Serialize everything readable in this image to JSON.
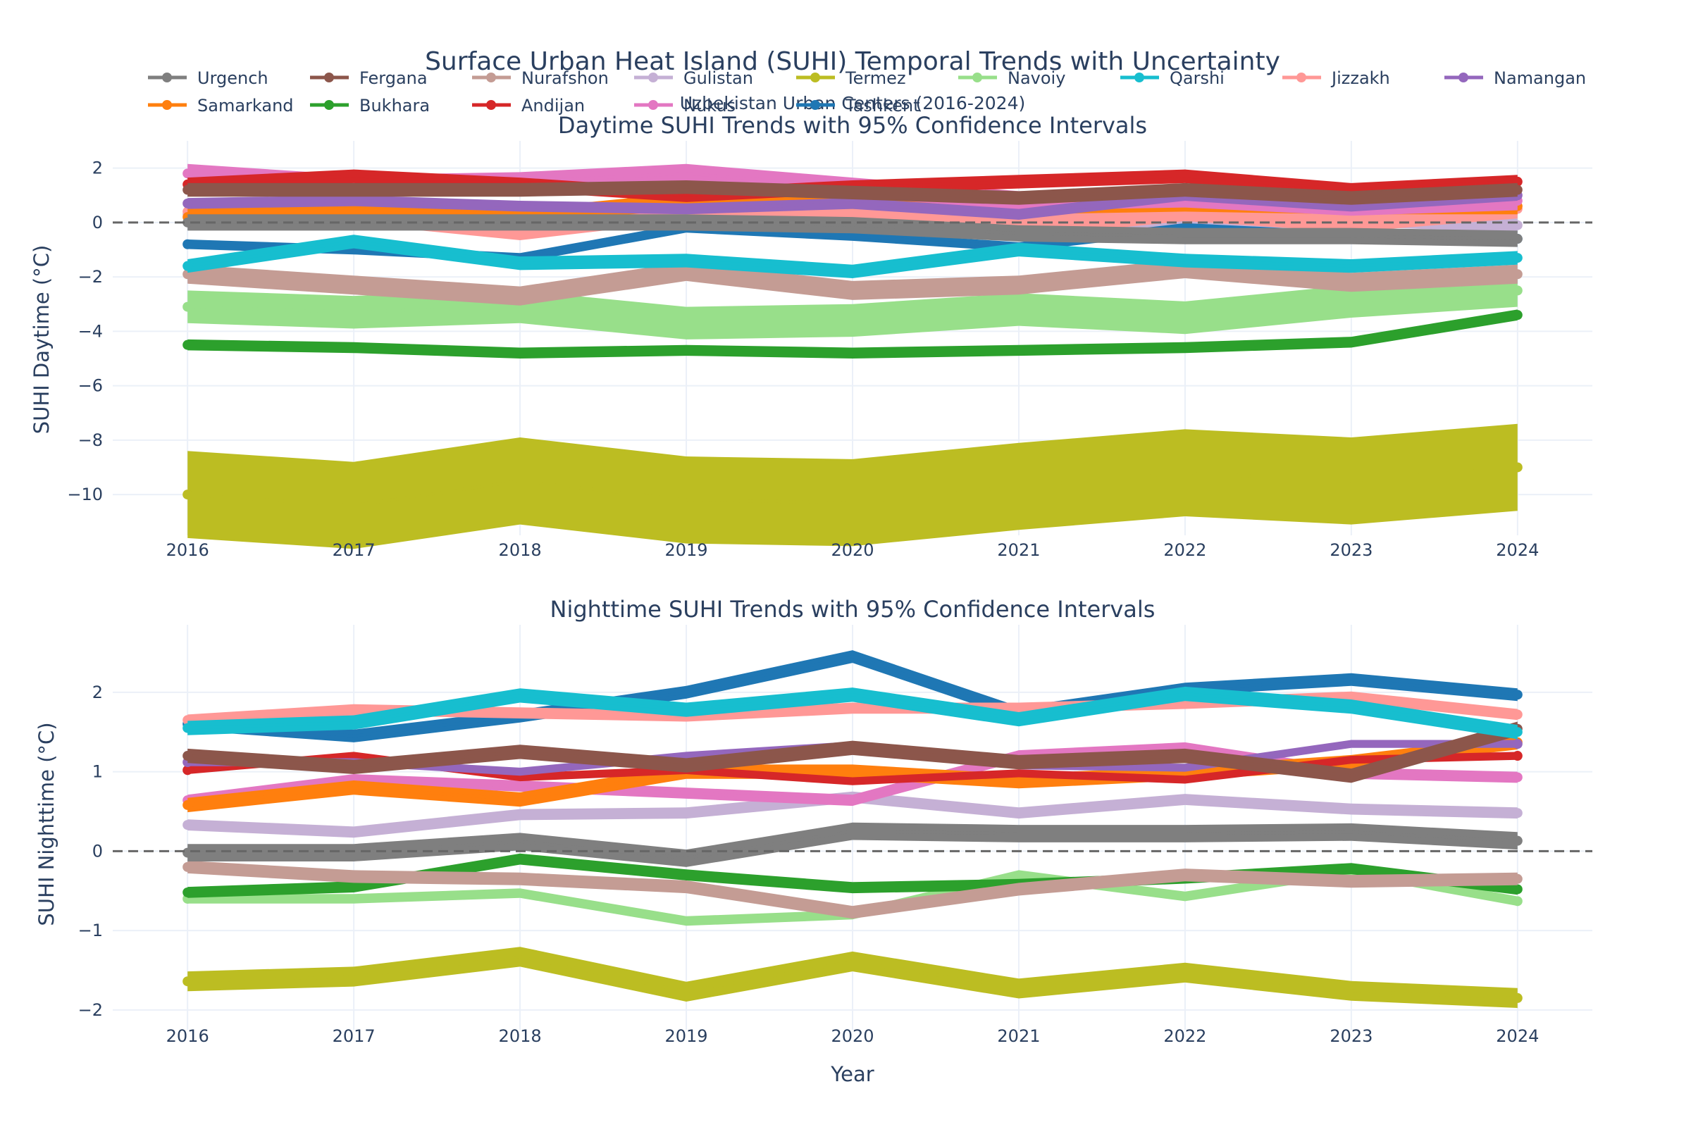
{
  "figure": {
    "title": "Surface Urban Heat Island (SUHI) Temporal Trends with Uncertainty",
    "subtitle": "Uzbekistan Urban Centers (2016-2024)"
  },
  "legend_entries": [
    {
      "name": "Urgench",
      "color": "#7f7f7f"
    },
    {
      "name": "Fergana",
      "color": "#8c564b"
    },
    {
      "name": "Nurafshon",
      "color": "#c49c94"
    },
    {
      "name": "Gulistan",
      "color": "#c5b0d5"
    },
    {
      "name": "Termez",
      "color": "#bcbd22"
    },
    {
      "name": "Navoiy",
      "color": "#98df8a"
    },
    {
      "name": "Qarshi",
      "color": "#17becf"
    },
    {
      "name": "Jizzakh",
      "color": "#ff9896"
    },
    {
      "name": "Namangan",
      "color": "#9467bd"
    },
    {
      "name": "Samarkand",
      "color": "#ff7f0e"
    },
    {
      "name": "Bukhara",
      "color": "#2ca02c"
    },
    {
      "name": "Andijan",
      "color": "#d62728"
    },
    {
      "name": "Nukus",
      "color": "#e377c2"
    },
    {
      "name": "Tashkent",
      "color": "#1f77b4"
    }
  ],
  "chart_data": [
    {
      "type": "line",
      "title": "Daytime SUHI Trends with 95% Confidence Intervals",
      "xlabel": "",
      "ylabel": "SUHI Daytime (°C)",
      "x": [
        2016,
        2017,
        2018,
        2019,
        2020,
        2021,
        2022,
        2023,
        2024
      ],
      "ylim": [
        -11.5,
        3.0
      ],
      "yticks": [
        2,
        0,
        -2,
        -4,
        -6,
        -8,
        -10
      ],
      "tick_labels": [
        "2",
        "0",
        "−2",
        "−4",
        "−6",
        "−8",
        "−10"
      ],
      "reference_line": 0,
      "series": [
        {
          "name": "Termez",
          "color": "#bcbd22",
          "width": 3.2,
          "values": [
            -10.0,
            -10.4,
            -9.5,
            -10.2,
            -10.3,
            -9.7,
            -9.2,
            -9.5,
            -9.0
          ]
        },
        {
          "name": "Navoiy",
          "color": "#98df8a",
          "width": 1.2,
          "values": [
            -3.1,
            -3.3,
            -3.1,
            -3.7,
            -3.6,
            -3.2,
            -3.5,
            -2.9,
            -2.5
          ]
        },
        {
          "name": "Nurafshon",
          "color": "#c49c94",
          "width": 0.7,
          "values": [
            -1.9,
            -2.3,
            -2.7,
            -1.8,
            -2.5,
            -2.3,
            -1.7,
            -2.2,
            -1.9
          ]
        },
        {
          "name": "Gulistan",
          "color": "#c5b0d5",
          "width": 0.5,
          "values": [
            0.3,
            0.3,
            0.1,
            0.4,
            0.4,
            0.2,
            0.0,
            0.1,
            -0.1
          ]
        },
        {
          "name": "Jizzakh",
          "color": "#ff9896",
          "width": 0.7,
          "values": [
            0.4,
            0.3,
            -0.3,
            0.4,
            0.2,
            -0.2,
            0.4,
            0.0,
            0.5
          ]
        },
        {
          "name": "Samarkand",
          "color": "#ff7f0e",
          "width": 0.6,
          "values": [
            0.2,
            0.4,
            0.2,
            0.8,
            0.8,
            0.6,
            0.7,
            0.6,
            0.6
          ]
        },
        {
          "name": "Bukhara",
          "color": "#2ca02c",
          "width": 0.4,
          "values": [
            -4.5,
            -4.6,
            -4.8,
            -4.7,
            -4.8,
            -4.7,
            -4.6,
            -4.4,
            -3.4
          ]
        },
        {
          "name": "Tashkent",
          "color": "#1f77b4",
          "width": 0.35,
          "values": [
            -0.8,
            -1.0,
            -1.3,
            -0.2,
            -0.5,
            -0.9,
            -0.2,
            -0.5,
            -0.6
          ]
        },
        {
          "name": "Qarshi",
          "color": "#17becf",
          "width": 0.5,
          "values": [
            -1.6,
            -0.7,
            -1.5,
            -1.4,
            -1.8,
            -1.0,
            -1.4,
            -1.6,
            -1.3
          ]
        },
        {
          "name": "Nukus",
          "color": "#e377c2",
          "width": 0.7,
          "values": [
            1.8,
            1.4,
            1.5,
            1.8,
            1.3,
            0.8,
            0.9,
            0.6,
            0.8
          ]
        },
        {
          "name": "Namangan",
          "color": "#9467bd",
          "width": 0.4,
          "values": [
            0.7,
            0.8,
            0.6,
            0.5,
            0.7,
            0.3,
            1.0,
            0.6,
            1.0
          ]
        },
        {
          "name": "Andijan",
          "color": "#d62728",
          "width": 0.5,
          "values": [
            1.4,
            1.7,
            1.4,
            1.0,
            1.3,
            1.5,
            1.7,
            1.2,
            1.5
          ]
        },
        {
          "name": "Fergana",
          "color": "#8c564b",
          "width": 0.5,
          "values": [
            1.2,
            1.2,
            1.2,
            1.3,
            1.1,
            0.9,
            1.2,
            0.9,
            1.2
          ]
        },
        {
          "name": "Urgench",
          "color": "#7f7f7f",
          "width": 0.6,
          "values": [
            0.0,
            0.0,
            0.0,
            0.0,
            -0.1,
            -0.4,
            -0.5,
            -0.5,
            -0.6
          ]
        }
      ]
    },
    {
      "type": "line",
      "title": "Nighttime SUHI Trends with 95% Confidence Intervals",
      "xlabel": "Year",
      "ylabel": "SUHI Nighttime (°C)",
      "x": [
        2016,
        2017,
        2018,
        2019,
        2020,
        2021,
        2022,
        2023,
        2024
      ],
      "ylim": [
        -2.25,
        2.85
      ],
      "yticks": [
        2,
        1,
        0,
        -1,
        -2
      ],
      "tick_labels": [
        "2",
        "1",
        "0",
        "−1",
        "−2"
      ],
      "reference_line": 0,
      "series": [
        {
          "name": "Termez",
          "color": "#bcbd22",
          "width": 0.25,
          "values": [
            -1.64,
            -1.58,
            -1.33,
            -1.77,
            -1.39,
            -1.73,
            -1.53,
            -1.76,
            -1.85
          ]
        },
        {
          "name": "Navoiy",
          "color": "#98df8a",
          "width": 0.12,
          "values": [
            -0.6,
            -0.6,
            -0.53,
            -0.88,
            -0.8,
            -0.3,
            -0.57,
            -0.25,
            -0.63
          ]
        },
        {
          "name": "Bukhara",
          "color": "#2ca02c",
          "width": 0.14,
          "values": [
            -0.52,
            -0.45,
            -0.1,
            -0.3,
            -0.46,
            -0.42,
            -0.34,
            -0.22,
            -0.48
          ]
        },
        {
          "name": "Nurafshon",
          "color": "#c49c94",
          "width": 0.16,
          "values": [
            -0.2,
            -0.32,
            -0.35,
            -0.45,
            -0.77,
            -0.48,
            -0.3,
            -0.38,
            -0.35
          ]
        },
        {
          "name": "Urgench",
          "color": "#7f7f7f",
          "width": 0.22,
          "values": [
            -0.02,
            -0.02,
            0.12,
            -0.09,
            0.25,
            0.22,
            0.22,
            0.24,
            0.13
          ]
        },
        {
          "name": "Gulistan",
          "color": "#c5b0d5",
          "width": 0.14,
          "values": [
            0.33,
            0.24,
            0.46,
            0.48,
            0.68,
            0.48,
            0.65,
            0.53,
            0.48
          ]
        },
        {
          "name": "Nukus",
          "color": "#e377c2",
          "width": 0.14,
          "values": [
            0.64,
            0.9,
            0.82,
            0.73,
            0.64,
            1.2,
            1.3,
            0.98,
            0.93
          ]
        },
        {
          "name": "Samarkand",
          "color": "#ff7f0e",
          "width": 0.18,
          "values": [
            0.58,
            0.8,
            0.65,
            1.0,
            1.0,
            0.88,
            0.98,
            1.12,
            1.37
          ]
        },
        {
          "name": "Andijan",
          "color": "#d62728",
          "width": 0.1,
          "values": [
            1.02,
            1.2,
            0.93,
            1.02,
            0.88,
            0.98,
            0.9,
            1.15,
            1.2
          ]
        },
        {
          "name": "Namangan",
          "color": "#9467bd",
          "width": 0.1,
          "values": [
            1.12,
            1.12,
            1.0,
            1.2,
            1.33,
            1.08,
            1.05,
            1.35,
            1.35
          ]
        },
        {
          "name": "Fergana",
          "color": "#8c564b",
          "width": 0.18,
          "values": [
            1.2,
            1.06,
            1.25,
            1.08,
            1.3,
            1.12,
            1.2,
            0.95,
            1.54
          ]
        },
        {
          "name": "Tashkent",
          "color": "#1f77b4",
          "width": 0.16,
          "values": [
            1.6,
            1.45,
            1.7,
            2.0,
            2.45,
            1.74,
            2.04,
            2.16,
            1.97
          ]
        },
        {
          "name": "Jizzakh",
          "color": "#ff9896",
          "width": 0.14,
          "values": [
            1.65,
            1.78,
            1.74,
            1.7,
            1.8,
            1.8,
            1.86,
            1.94,
            1.72
          ]
        },
        {
          "name": "Qarshi",
          "color": "#17becf",
          "width": 0.18,
          "values": [
            1.55,
            1.62,
            1.96,
            1.78,
            1.97,
            1.66,
            1.98,
            1.82,
            1.5
          ]
        }
      ]
    }
  ]
}
